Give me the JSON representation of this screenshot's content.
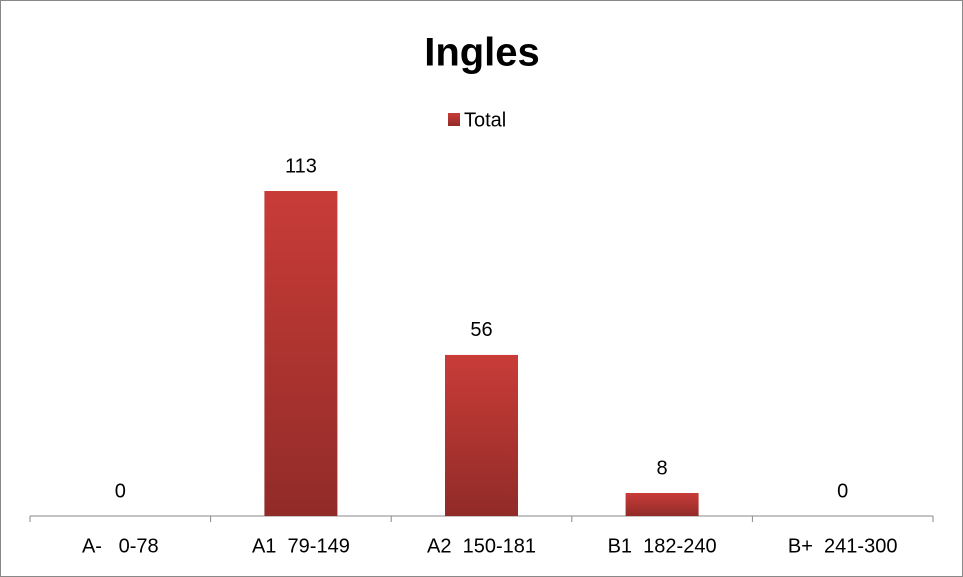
{
  "chart_data": {
    "type": "bar",
    "title": "Ingles",
    "legend": "Total",
    "categories": [
      "A-   0-78",
      "A1  79-149",
      "A2  150-181",
      "B1  182-240",
      "B+  241-300"
    ],
    "series": [
      {
        "name": "Total",
        "color": "#c93c38",
        "values": [
          0,
          113,
          56,
          8,
          0
        ]
      }
    ],
    "data_labels": true,
    "legend_position": "top"
  }
}
